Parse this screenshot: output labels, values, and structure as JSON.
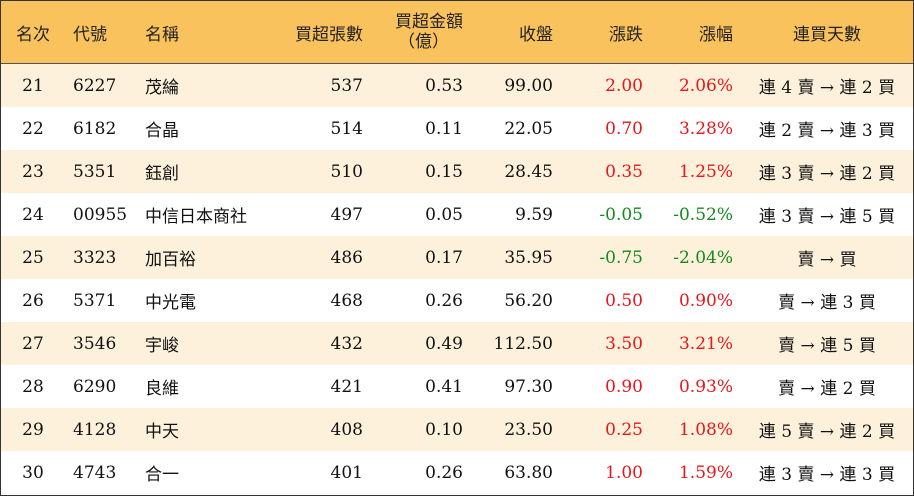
{
  "colors": {
    "header_bg": "#f9c25c",
    "odd_row_bg": "#fdf1dc",
    "up": "#e8151b",
    "down": "#138a1c"
  },
  "headers": {
    "rank": "名次",
    "code": "代號",
    "name": "名稱",
    "net_buy_lots": "買超張數",
    "net_buy_amount_line1": "買超金額",
    "net_buy_amount_line2": "（億）",
    "close": "收盤",
    "change": "漲跌",
    "change_pct": "漲幅",
    "consec_days": "連買天數"
  },
  "rows": [
    {
      "rank": "21",
      "code": "6227",
      "name": "茂綸",
      "lots": "537",
      "amount": "0.53",
      "close": "99.00",
      "change": "2.00",
      "pct": "2.06%",
      "dir": "up",
      "days": "連 4 賣 → 連 2 買"
    },
    {
      "rank": "22",
      "code": "6182",
      "name": "合晶",
      "lots": "514",
      "amount": "0.11",
      "close": "22.05",
      "change": "0.70",
      "pct": "3.28%",
      "dir": "up",
      "days": "連 2 賣 → 連 3 買"
    },
    {
      "rank": "23",
      "code": "5351",
      "name": "鈺創",
      "lots": "510",
      "amount": "0.15",
      "close": "28.45",
      "change": "0.35",
      "pct": "1.25%",
      "dir": "up",
      "days": "連 3 賣 → 連 2 買"
    },
    {
      "rank": "24",
      "code": "00955",
      "name": "中信日本商社",
      "lots": "497",
      "amount": "0.05",
      "close": "9.59",
      "change": "-0.05",
      "pct": "-0.52%",
      "dir": "down",
      "days": "連 3 賣 → 連 5 買"
    },
    {
      "rank": "25",
      "code": "3323",
      "name": "加百裕",
      "lots": "486",
      "amount": "0.17",
      "close": "35.95",
      "change": "-0.75",
      "pct": "-2.04%",
      "dir": "down",
      "days": "賣 → 買"
    },
    {
      "rank": "26",
      "code": "5371",
      "name": "中光電",
      "lots": "468",
      "amount": "0.26",
      "close": "56.20",
      "change": "0.50",
      "pct": "0.90%",
      "dir": "up",
      "days": "賣 → 連 3 買"
    },
    {
      "rank": "27",
      "code": "3546",
      "name": "宇峻",
      "lots": "432",
      "amount": "0.49",
      "close": "112.50",
      "change": "3.50",
      "pct": "3.21%",
      "dir": "up",
      "days": "賣 → 連 5 買"
    },
    {
      "rank": "28",
      "code": "6290",
      "name": "良維",
      "lots": "421",
      "amount": "0.41",
      "close": "97.30",
      "change": "0.90",
      "pct": "0.93%",
      "dir": "up",
      "days": "賣 → 連 2 買"
    },
    {
      "rank": "29",
      "code": "4128",
      "name": "中天",
      "lots": "408",
      "amount": "0.10",
      "close": "23.50",
      "change": "0.25",
      "pct": "1.08%",
      "dir": "up",
      "days": "連 5 賣 → 連 2 買"
    },
    {
      "rank": "30",
      "code": "4743",
      "name": "合一",
      "lots": "401",
      "amount": "0.26",
      "close": "63.80",
      "change": "1.00",
      "pct": "1.59%",
      "dir": "up",
      "days": "連 3 賣 → 連 3 買"
    }
  ]
}
